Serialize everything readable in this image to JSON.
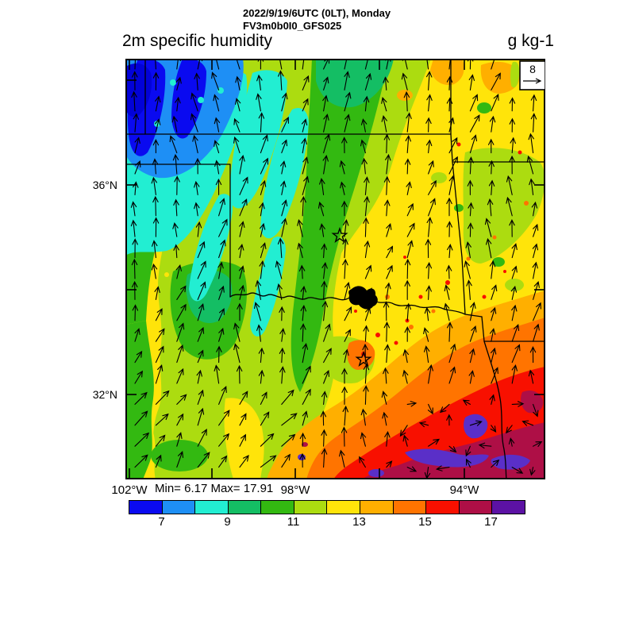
{
  "header": {
    "datetime": "2022/9/19/6UTC (0LT), Monday",
    "model": "FV3m0b0I0_GFS025",
    "title": "2m specific humidity",
    "units": "g kg-1"
  },
  "map": {
    "lat_labels": [
      "36°N",
      "32°N"
    ],
    "lon_labels": [
      "102°W",
      "98°W",
      "94°W"
    ],
    "wind_ref_value": "8",
    "stats": "Min= 6.17 Max= 17.91"
  },
  "chart_data": {
    "type": "heatmap",
    "title": "2m specific humidity",
    "header_lines": [
      "2022/9/19/6UTC (0LT), Monday",
      "FV3m0b0I0_GFS025"
    ],
    "units": "g kg-1",
    "min": 6.17,
    "max": 17.91,
    "colorbar": {
      "levels": [
        6,
        7,
        8,
        9,
        10,
        11,
        12,
        13,
        14,
        15,
        16,
        17,
        18
      ],
      "tick_labels": [
        "7",
        "9",
        "11",
        "13",
        "15",
        "17"
      ],
      "colors": [
        "#0A0AF0",
        "#1E8FF5",
        "#22EED2",
        "#14BE64",
        "#33B911",
        "#ACDC10",
        "#FFE40A",
        "#FFAF00",
        "#FF7400",
        "#F81000",
        "#AE0F46",
        "#5C12A4"
      ]
    },
    "x_axis": {
      "tick_labels": [
        "102°W",
        "98°W",
        "94°W"
      ]
    },
    "y_axis": {
      "tick_labels": [
        "36°N",
        "32°N"
      ]
    },
    "wind_reference": 8,
    "palette": {
      "blue": "#0A0AF0",
      "dodger": "#1E8FF5",
      "cyan": "#22EED2",
      "seagreen": "#14BE64",
      "green": "#33B911",
      "yellowgreen": "#ACDC10",
      "yellow": "#FFE40A",
      "orangeL": "#FFAF00",
      "orange": "#FF7400",
      "red": "#F81000",
      "crimson": "#AE0F46",
      "purple": "#5C12A4",
      "darkblue": "#0202D8",
      "violet": "#5A2FC8"
    }
  }
}
